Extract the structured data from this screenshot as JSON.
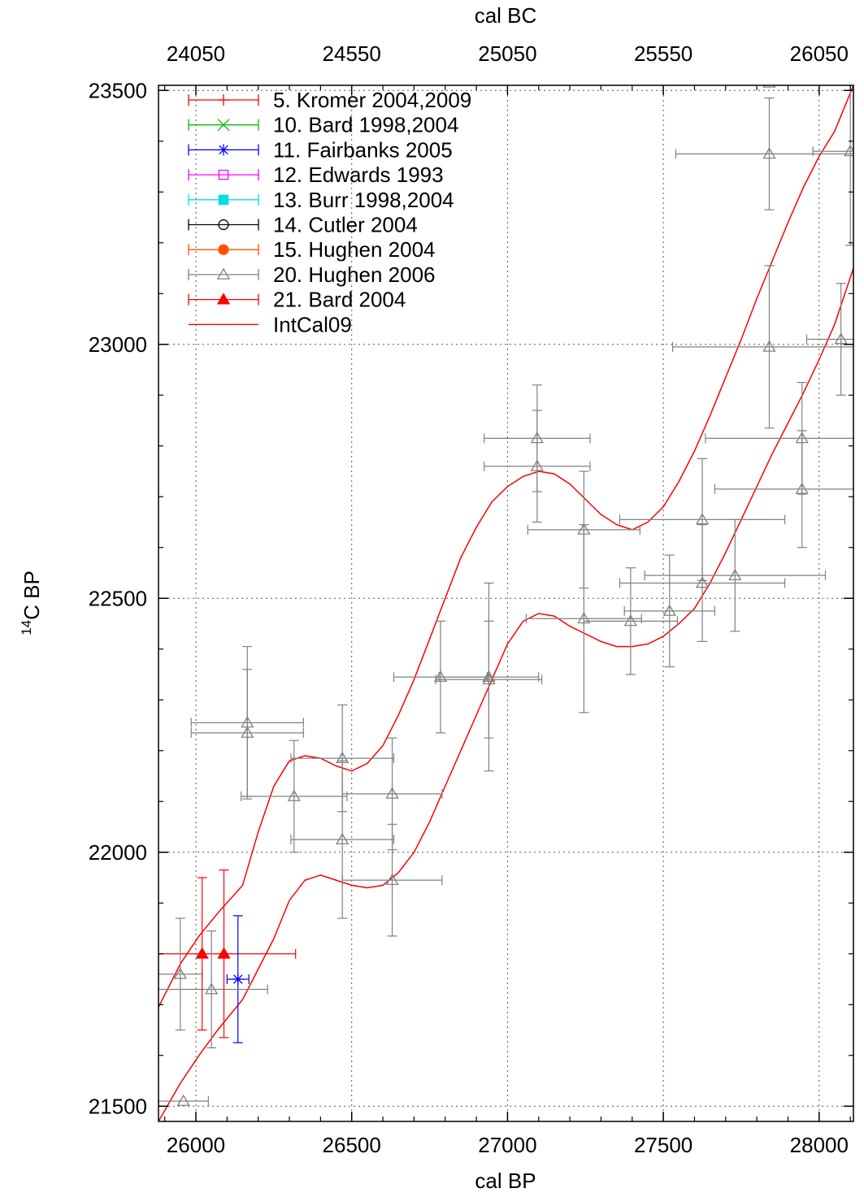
{
  "chart_data": {
    "type": "scatter",
    "title": "",
    "xlabel": "cal BP",
    "x2label": "cal BC",
    "ylabel_prefix": "14",
    "ylabel": "C BP",
    "xlim": [
      25880,
      28110
    ],
    "ylim": [
      21470,
      23510
    ],
    "x_ticks": [
      26000,
      26500,
      27000,
      27500,
      28000
    ],
    "x_tick_labels": [
      "26000",
      "26500",
      "27000",
      "27500",
      "28000"
    ],
    "x2_ticks": [
      26000,
      26500,
      27000,
      27500,
      28000
    ],
    "x2_tick_labels": [
      "24050",
      "24550",
      "25050",
      "25550",
      "26050"
    ],
    "y_ticks": [
      21500,
      22000,
      22500,
      23000,
      23500
    ],
    "y_tick_labels": [
      "21500",
      "22000",
      "22500",
      "23000",
      "23500"
    ],
    "grid": true,
    "legend_position": "top-left",
    "legend": [
      {
        "label": "5. Kromer 2004,2009",
        "color": "#ff0000",
        "marker": "plus"
      },
      {
        "label": "10. Bard 1998,2004",
        "color": "#00c000",
        "marker": "cross"
      },
      {
        "label": "11. Fairbanks 2005",
        "color": "#0000ff",
        "marker": "star"
      },
      {
        "label": "12. Edwards 1993",
        "color": "#ff00ff",
        "marker": "square-open"
      },
      {
        "label": "13. Burr 1998,2004",
        "color": "#00e0e0",
        "marker": "square-filled"
      },
      {
        "label": "14. Cutler 2004",
        "color": "#000000",
        "marker": "circle-open"
      },
      {
        "label": "15. Hughen 2004",
        "color": "#ff5000",
        "marker": "circle-filled"
      },
      {
        "label": "20. Hughen 2006",
        "color": "#808080",
        "marker": "triangle-open"
      },
      {
        "label": "21. Bard 2004",
        "color": "#ff0000",
        "marker": "triangle-filled"
      },
      {
        "label": "IntCal09",
        "color": "#ff0000",
        "marker": "line"
      }
    ],
    "series": [
      {
        "name": "5. Kromer 2004,2009",
        "color": "#ff0000",
        "marker": "plus",
        "points": [
          {
            "x": 26090,
            "y": 21800,
            "xerr": 230,
            "yerr": 0
          }
        ]
      },
      {
        "name": "11. Fairbanks 2005",
        "color": "#0000ff",
        "marker": "star",
        "points": [
          {
            "x": 26135,
            "y": 21750,
            "xerr": 35,
            "yerr": 125
          }
        ]
      },
      {
        "name": "20. Hughen 2006",
        "color": "#808080",
        "marker": "triangle-open",
        "points": [
          {
            "x": 25950,
            "y": 21760,
            "xerr": 70,
            "yerr": 110
          },
          {
            "x": 26050,
            "y": 21730,
            "xerr": 180,
            "yerr": 115
          },
          {
            "x": 26165,
            "y": 22255,
            "xerr": 180,
            "yerr": 150
          },
          {
            "x": 26165,
            "y": 22235,
            "xerr": 180,
            "yerr": 125
          },
          {
            "x": 26315,
            "y": 22110,
            "xerr": 170,
            "yerr": 110
          },
          {
            "x": 26470,
            "y": 22185,
            "xerr": 165,
            "yerr": 105
          },
          {
            "x": 26470,
            "y": 22025,
            "xerr": 165,
            "yerr": 155
          },
          {
            "x": 26630,
            "y": 22115,
            "xerr": 160,
            "yerr": 110
          },
          {
            "x": 26630,
            "y": 21945,
            "xerr": 160,
            "yerr": 110
          },
          {
            "x": 26785,
            "y": 22345,
            "xerr": 150,
            "yerr": 110
          },
          {
            "x": 26940,
            "y": 22345,
            "xerr": 160,
            "yerr": 185
          },
          {
            "x": 26940,
            "y": 22340,
            "xerr": 170,
            "yerr": 115
          },
          {
            "x": 27095,
            "y": 22815,
            "xerr": 170,
            "yerr": 105
          },
          {
            "x": 27095,
            "y": 22760,
            "xerr": 170,
            "yerr": 110
          },
          {
            "x": 27245,
            "y": 22635,
            "xerr": 180,
            "yerr": 115
          },
          {
            "x": 27245,
            "y": 22460,
            "xerr": 185,
            "yerr": 185
          },
          {
            "x": 27395,
            "y": 22455,
            "xerr": 150,
            "yerr": 105
          },
          {
            "x": 27520,
            "y": 22475,
            "xerr": 145,
            "yerr": 110
          },
          {
            "x": 27625,
            "y": 22655,
            "xerr": 265,
            "yerr": 120
          },
          {
            "x": 27625,
            "y": 22530,
            "xerr": 265,
            "yerr": 115
          },
          {
            "x": 27730,
            "y": 22545,
            "xerr": 290,
            "yerr": 110
          },
          {
            "x": 27840,
            "y": 23515,
            "xerr": 0,
            "yerr": 0
          },
          {
            "x": 27840,
            "y": 23375,
            "xerr": 300,
            "yerr": 110
          },
          {
            "x": 27840,
            "y": 22995,
            "xerr": 310,
            "yerr": 160
          },
          {
            "x": 27945,
            "y": 22815,
            "xerr": 310,
            "yerr": 110
          },
          {
            "x": 27945,
            "y": 22715,
            "xerr": 280,
            "yerr": 115
          },
          {
            "x": 28070,
            "y": 23010,
            "xerr": 110,
            "yerr": 110
          },
          {
            "x": 28100,
            "y": 23380,
            "xerr": 120,
            "yerr": 185
          },
          {
            "x": 25960,
            "y": 21510,
            "xerr": 80,
            "yerr": 0
          }
        ]
      },
      {
        "name": "21. Bard 2004",
        "color": "#ff0000",
        "marker": "triangle-filled",
        "points": [
          {
            "x": 26020,
            "y": 21800,
            "xerr": 0,
            "yerr": 150
          },
          {
            "x": 26090,
            "y": 21800,
            "xerr": 0,
            "yerr": 165
          }
        ]
      }
    ],
    "curves": [
      {
        "name": "IntCal09 upper",
        "color": "#ff0000",
        "points": [
          [
            25880,
            21695
          ],
          [
            25950,
            21780
          ],
          [
            26010,
            21835
          ],
          [
            26070,
            21880
          ],
          [
            26150,
            21935
          ],
          [
            26200,
            22040
          ],
          [
            26250,
            22130
          ],
          [
            26300,
            22180
          ],
          [
            26350,
            22190
          ],
          [
            26400,
            22185
          ],
          [
            26450,
            22170
          ],
          [
            26500,
            22160
          ],
          [
            26550,
            22175
          ],
          [
            26600,
            22210
          ],
          [
            26650,
            22270
          ],
          [
            26700,
            22340
          ],
          [
            26750,
            22420
          ],
          [
            26800,
            22500
          ],
          [
            26850,
            22580
          ],
          [
            26900,
            22640
          ],
          [
            26950,
            22690
          ],
          [
            27000,
            22720
          ],
          [
            27050,
            22740
          ],
          [
            27100,
            22750
          ],
          [
            27150,
            22745
          ],
          [
            27200,
            22725
          ],
          [
            27250,
            22695
          ],
          [
            27300,
            22665
          ],
          [
            27350,
            22645
          ],
          [
            27400,
            22635
          ],
          [
            27450,
            22650
          ],
          [
            27500,
            22680
          ],
          [
            27550,
            22730
          ],
          [
            27600,
            22790
          ],
          [
            27650,
            22860
          ],
          [
            27700,
            22935
          ],
          [
            27750,
            23010
          ],
          [
            27800,
            23090
          ],
          [
            27850,
            23165
          ],
          [
            27900,
            23240
          ],
          [
            27950,
            23310
          ],
          [
            28000,
            23370
          ],
          [
            28050,
            23420
          ],
          [
            28110,
            23510
          ]
        ]
      },
      {
        "name": "IntCal09 lower",
        "color": "#ff0000",
        "points": [
          [
            25880,
            21470
          ],
          [
            25950,
            21545
          ],
          [
            26010,
            21600
          ],
          [
            26070,
            21650
          ],
          [
            26150,
            21710
          ],
          [
            26200,
            21770
          ],
          [
            26250,
            21830
          ],
          [
            26300,
            21905
          ],
          [
            26350,
            21945
          ],
          [
            26400,
            21955
          ],
          [
            26450,
            21945
          ],
          [
            26500,
            21935
          ],
          [
            26550,
            21930
          ],
          [
            26600,
            21935
          ],
          [
            26650,
            21960
          ],
          [
            26700,
            22000
          ],
          [
            26750,
            22060
          ],
          [
            26800,
            22130
          ],
          [
            26850,
            22200
          ],
          [
            26900,
            22270
          ],
          [
            26950,
            22340
          ],
          [
            27000,
            22410
          ],
          [
            27050,
            22455
          ],
          [
            27100,
            22470
          ],
          [
            27150,
            22465
          ],
          [
            27200,
            22445
          ],
          [
            27250,
            22430
          ],
          [
            27300,
            22415
          ],
          [
            27350,
            22405
          ],
          [
            27400,
            22405
          ],
          [
            27450,
            22410
          ],
          [
            27500,
            22425
          ],
          [
            27550,
            22450
          ],
          [
            27600,
            22480
          ],
          [
            27650,
            22530
          ],
          [
            27700,
            22590
          ],
          [
            27750,
            22655
          ],
          [
            27800,
            22720
          ],
          [
            27850,
            22785
          ],
          [
            27900,
            22845
          ],
          [
            27950,
            22905
          ],
          [
            28000,
            22970
          ],
          [
            28050,
            23040
          ],
          [
            28110,
            23150
          ]
        ]
      }
    ]
  }
}
